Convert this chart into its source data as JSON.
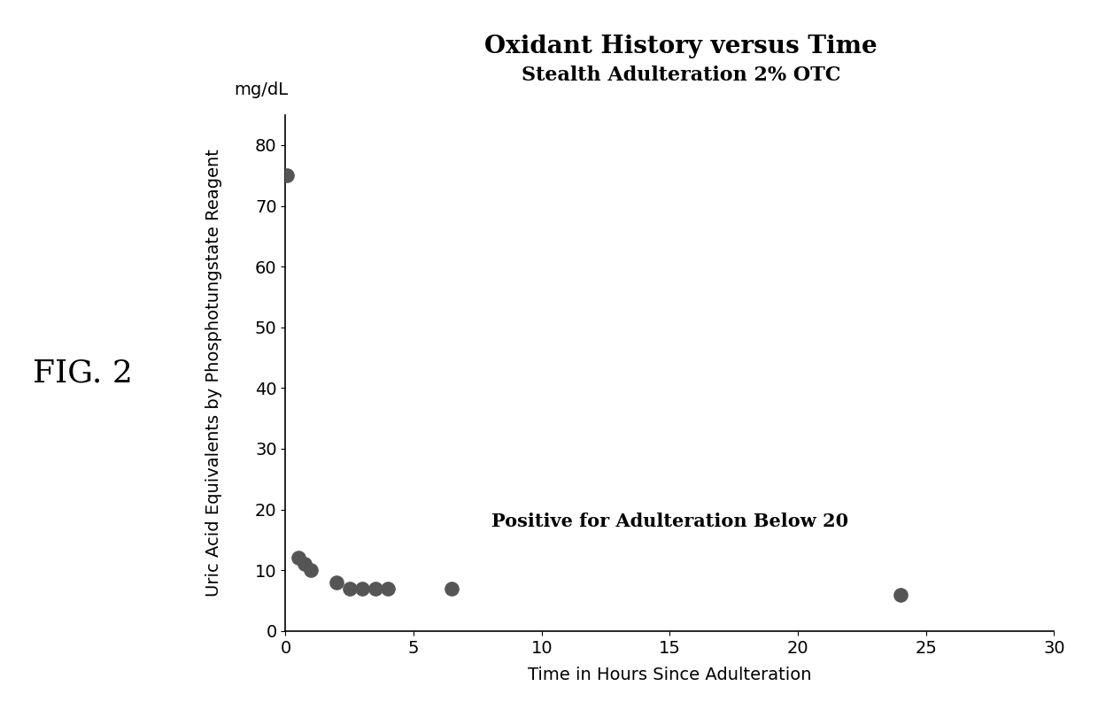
{
  "title_line1": "Oxidant History versus Time",
  "title_line2": "Stealth Adulteration 2% OTC",
  "xlabel": "Time in Hours Since Adulteration",
  "ylabel": "Uric Acid Equivalents by Phosphotungstate Reagent",
  "ylabel2": "mg/dL",
  "annotation": "Positive for Adulteration Below 20",
  "fig_label": "FIG. 2",
  "x_data": [
    0.05,
    0.5,
    0.75,
    1.0,
    2.0,
    2.5,
    3.0,
    3.5,
    4.0,
    6.5,
    24.0
  ],
  "y_data": [
    75,
    12,
    11,
    10,
    8,
    7,
    7,
    7,
    7,
    7,
    6
  ],
  "xlim": [
    0,
    30
  ],
  "ylim": [
    0,
    85
  ],
  "xticks": [
    0,
    5,
    10,
    15,
    20,
    25,
    30
  ],
  "yticks": [
    0,
    10,
    20,
    30,
    40,
    50,
    60,
    70,
    80
  ],
  "marker_color": "#555555",
  "marker_size": 120,
  "background_color": "#ffffff",
  "annotation_fontsize": 15,
  "title_fontsize": 20,
  "subtitle_fontsize": 16,
  "axis_label_fontsize": 14,
  "tick_fontsize": 14,
  "fig_label_fontsize": 26
}
